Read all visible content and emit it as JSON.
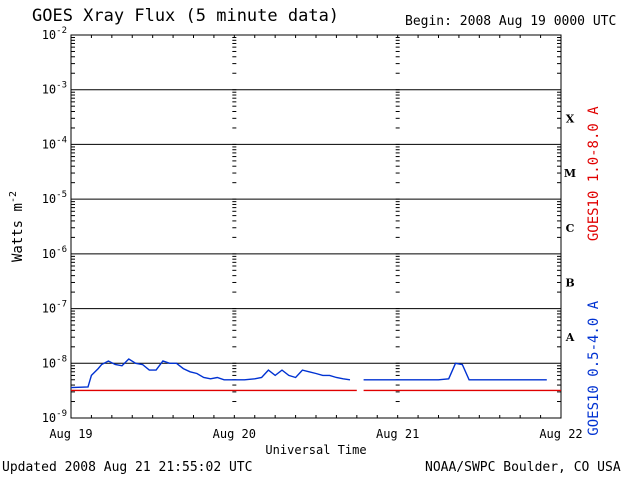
{
  "header": {
    "title": "GOES Xray Flux (5 minute data)",
    "begin": "Begin:  2008 Aug 19 0000 UTC"
  },
  "footer": {
    "updated": "Updated 2008 Aug 21 21:55:02 UTC",
    "credit": "NOAA/SWPC Boulder, CO USA"
  },
  "colors": {
    "long_channel": "#e00000",
    "short_channel": "#0032d2",
    "axis": "#000000"
  },
  "chart_data": {
    "type": "line",
    "title": "GOES Xray Flux (5 minute data)",
    "xlabel": "Universal Time",
    "ylabel": "Watts m",
    "ylabel_sup": "-2",
    "yscale": "log",
    "ylim": [
      1e-09,
      0.01
    ],
    "xlim": [
      "2008-08-19 00:00",
      "2008-08-22 00:00"
    ],
    "grid": true,
    "x_ticks": [
      "Aug 19",
      "Aug 20",
      "Aug 21",
      "Aug 22"
    ],
    "y_ticks": [
      {
        "base": "10",
        "exp": "-9",
        "value": 1e-09
      },
      {
        "base": "10",
        "exp": "-8",
        "value": 1e-08
      },
      {
        "base": "10",
        "exp": "-7",
        "value": 1e-07
      },
      {
        "base": "10",
        "exp": "-6",
        "value": 1e-06
      },
      {
        "base": "10",
        "exp": "-5",
        "value": 1e-05
      },
      {
        "base": "10",
        "exp": "-4",
        "value": 0.0001
      },
      {
        "base": "10",
        "exp": "-3",
        "value": 0.001
      },
      {
        "base": "10",
        "exp": "-2",
        "value": 0.01
      }
    ],
    "flare_classes": [
      {
        "label": "A",
        "value": 3e-08
      },
      {
        "label": "B",
        "value": 3e-07
      },
      {
        "label": "C",
        "value": 3e-06
      },
      {
        "label": "M",
        "value": 3e-05
      },
      {
        "label": "X",
        "value": 0.0003
      }
    ],
    "series": [
      {
        "name": "GOES10 1.0-8.0 A",
        "color": "#e00000",
        "segments": [
          {
            "x": [
              "2008-08-19 00:00",
              "2008-08-20 18:00"
            ],
            "y": [
              3.2e-09,
              3.2e-09
            ]
          },
          {
            "x": [
              "2008-08-20 19:00",
              "2008-08-22 00:00"
            ],
            "y": [
              3.2e-09,
              3.2e-09
            ]
          }
        ]
      },
      {
        "name": "GOES10 0.5-4.0 A",
        "color": "#0032d2",
        "segments": [
          {
            "x": [
              "2008-08-19 00:00",
              "2008-08-19 02:30",
              "2008-08-19 03:00",
              "2008-08-19 04:00",
              "2008-08-19 04:30",
              "2008-08-19 05:30",
              "2008-08-19 06:30",
              "2008-08-19 07:30",
              "2008-08-19 08:30",
              "2008-08-19 09:30",
              "2008-08-19 10:30",
              "2008-08-19 11:30",
              "2008-08-19 12:30",
              "2008-08-19 13:30",
              "2008-08-19 14:30",
              "2008-08-19 15:30",
              "2008-08-19 16:30",
              "2008-08-19 17:30",
              "2008-08-19 18:30",
              "2008-08-19 19:30",
              "2008-08-19 20:30",
              "2008-08-19 21:30",
              "2008-08-19 22:30",
              "2008-08-20 00:00",
              "2008-08-20 01:30",
              "2008-08-20 03:00",
              "2008-08-20 04:00",
              "2008-08-20 05:00",
              "2008-08-20 06:00",
              "2008-08-20 07:00",
              "2008-08-20 08:00",
              "2008-08-20 09:00",
              "2008-08-20 10:00",
              "2008-08-20 11:00",
              "2008-08-20 12:00",
              "2008-08-20 13:00",
              "2008-08-20 14:00",
              "2008-08-20 15:00",
              "2008-08-20 16:00",
              "2008-08-20 17:00"
            ],
            "y": [
              3.6e-09,
              3.7e-09,
              6e-09,
              8e-09,
              9.5e-09,
              1.1e-08,
              9.5e-09,
              9e-09,
              1.2e-08,
              1e-08,
              9.5e-09,
              7.5e-09,
              7.5e-09,
              1.1e-08,
              1e-08,
              1e-08,
              8e-09,
              7e-09,
              6.5e-09,
              5.5e-09,
              5.2e-09,
              5.5e-09,
              5e-09,
              5e-09,
              5e-09,
              5.2e-09,
              5.5e-09,
              7.5e-09,
              6e-09,
              7.5e-09,
              6e-09,
              5.5e-09,
              7.5e-09,
              7e-09,
              6.5e-09,
              6e-09,
              6e-09,
              5.5e-09,
              5.2e-09,
              5e-09
            ]
          },
          {
            "x": [
              "2008-08-20 19:00",
              "2008-08-21 00:00",
              "2008-08-21 03:00",
              "2008-08-21 06:00",
              "2008-08-21 07:30",
              "2008-08-21 08:30",
              "2008-08-21 09:30",
              "2008-08-21 10:30",
              "2008-08-21 12:00",
              "2008-08-21 15:00",
              "2008-08-21 18:00",
              "2008-08-21 21:55"
            ],
            "y": [
              5e-09,
              5e-09,
              5e-09,
              5e-09,
              5.2e-09,
              1e-08,
              9.5e-09,
              5e-09,
              5e-09,
              5e-09,
              5e-09,
              5e-09
            ]
          }
        ]
      }
    ]
  }
}
